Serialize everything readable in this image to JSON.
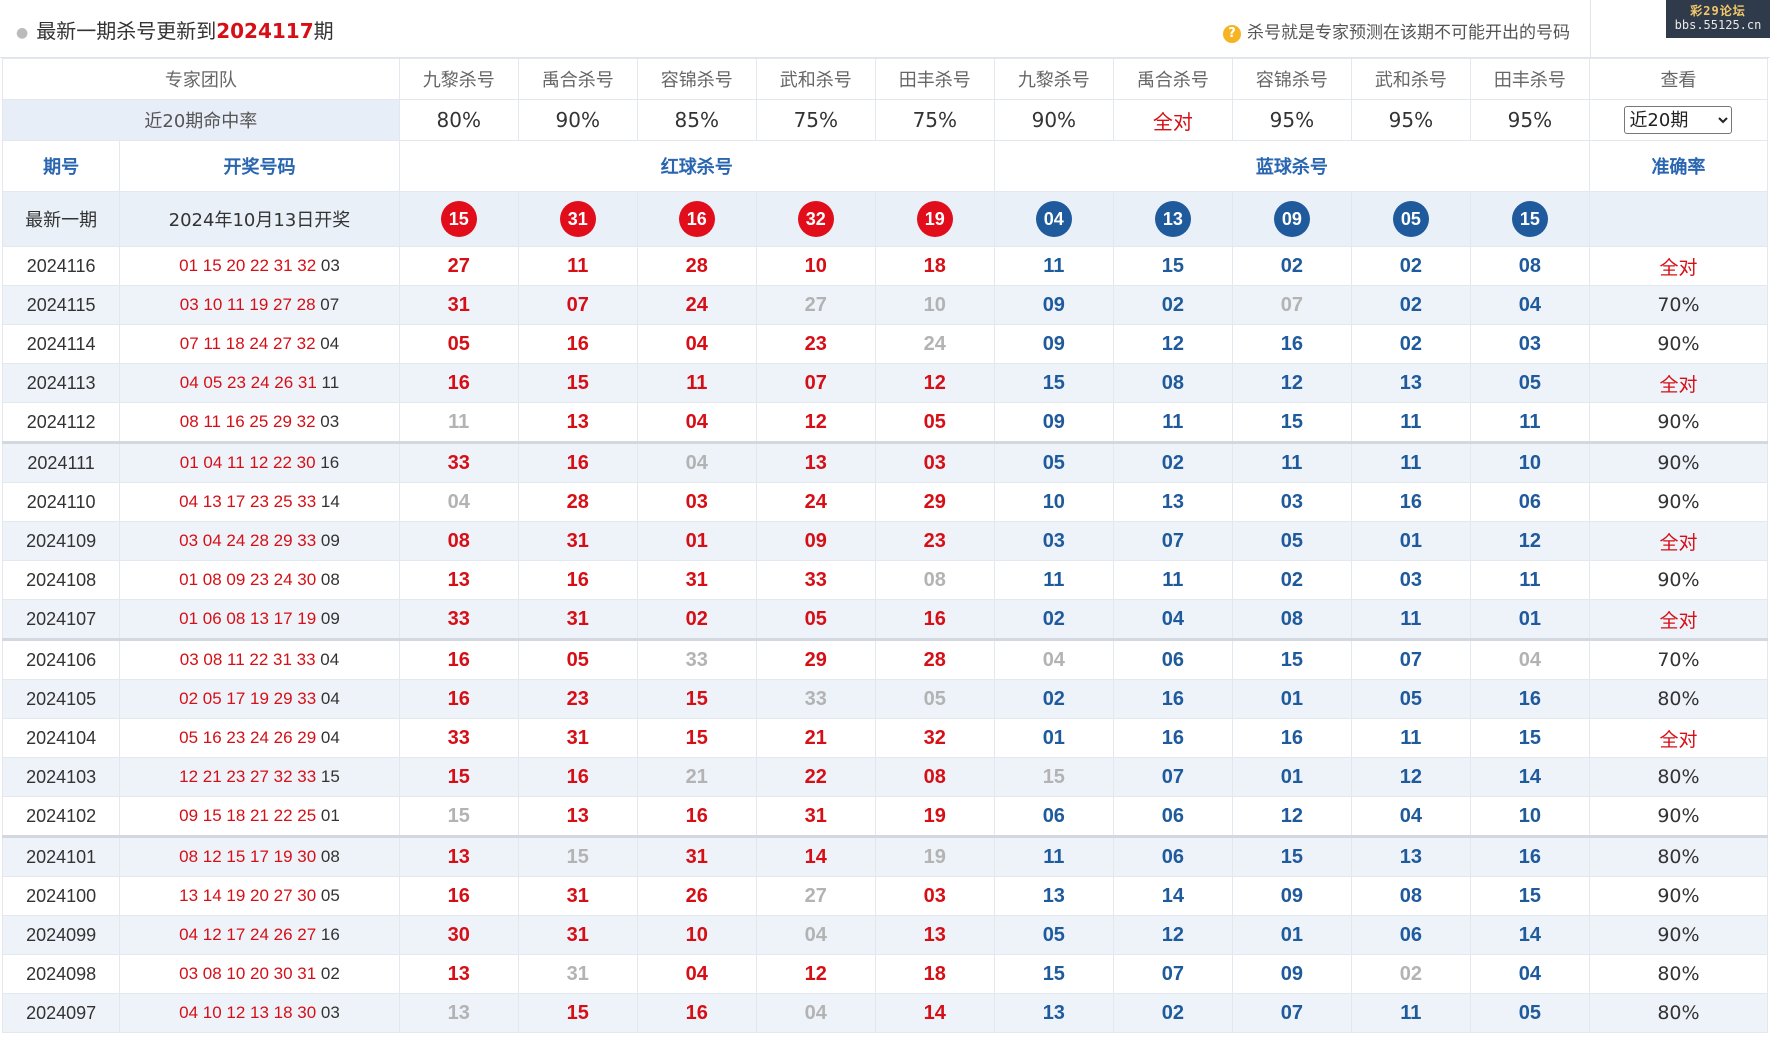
{
  "header": {
    "title_prefix": "最新一期杀号更新到",
    "latest_issue": "2024117",
    "title_suffix": "期",
    "hint": "杀号就是专家预测在该期不可能开出的号码",
    "hint_icon": "question-icon",
    "watermark_line1": "彩29论坛",
    "watermark_line2": "bbs.55125.cn"
  },
  "experts_header": {
    "team_label": "专家团队",
    "red": [
      "九黎杀号",
      "禹合杀号",
      "容锦杀号",
      "武和杀号",
      "田丰杀号"
    ],
    "blue": [
      "九黎杀号",
      "禹合杀号",
      "容锦杀号",
      "武和杀号",
      "田丰杀号"
    ],
    "view_label": "查看"
  },
  "hit_rate": {
    "label": "近20期命中率",
    "values": [
      "80%",
      "90%",
      "85%",
      "75%",
      "75%",
      "90%",
      "全对",
      "95%",
      "95%",
      "95%"
    ],
    "period_select": "近20期"
  },
  "sections": {
    "issue": "期号",
    "draw": "开奖号码",
    "red_kill": "红球杀号",
    "blue_kill": "蓝球杀号",
    "accuracy": "准确率"
  },
  "latest": {
    "label": "最新一期",
    "draw_date": "2024年10月13日开奖",
    "red": [
      "15",
      "31",
      "16",
      "32",
      "19"
    ],
    "blue": [
      "04",
      "13",
      "09",
      "05",
      "15"
    ]
  },
  "rows": [
    {
      "issue": "2024116",
      "red": "01 15 20 22 31 32",
      "blue": "03",
      "kills": [
        "27",
        "11",
        "28",
        "10",
        "18",
        "11",
        "15",
        "02",
        "02",
        "08"
      ],
      "miss": [],
      "acc": "全对"
    },
    {
      "issue": "2024115",
      "red": "03 10 11 19 27 28",
      "blue": "07",
      "kills": [
        "31",
        "07",
        "24",
        "27",
        "10",
        "09",
        "02",
        "07",
        "02",
        "04"
      ],
      "miss": [
        3,
        4,
        7
      ],
      "acc": "70%"
    },
    {
      "issue": "2024114",
      "red": "07 11 18 24 27 32",
      "blue": "04",
      "kills": [
        "05",
        "16",
        "04",
        "23",
        "24",
        "09",
        "12",
        "16",
        "02",
        "03"
      ],
      "miss": [
        4
      ],
      "acc": "90%"
    },
    {
      "issue": "2024113",
      "red": "04 05 23 24 26 31",
      "blue": "11",
      "kills": [
        "16",
        "15",
        "11",
        "07",
        "12",
        "15",
        "08",
        "12",
        "13",
        "05"
      ],
      "miss": [],
      "acc": "全对"
    },
    {
      "issue": "2024112",
      "red": "08 11 16 25 29 32",
      "blue": "03",
      "kills": [
        "11",
        "13",
        "04",
        "12",
        "05",
        "09",
        "11",
        "15",
        "11",
        "11"
      ],
      "miss": [
        0
      ],
      "acc": "90%"
    },
    {
      "issue": "2024111",
      "red": "01 04 11 12 22 30",
      "blue": "16",
      "kills": [
        "33",
        "16",
        "04",
        "13",
        "03",
        "05",
        "02",
        "11",
        "11",
        "10"
      ],
      "miss": [
        2
      ],
      "acc": "90%"
    },
    {
      "issue": "2024110",
      "red": "04 13 17 23 25 33",
      "blue": "14",
      "kills": [
        "04",
        "28",
        "03",
        "24",
        "29",
        "10",
        "13",
        "03",
        "16",
        "06"
      ],
      "miss": [
        0
      ],
      "acc": "90%"
    },
    {
      "issue": "2024109",
      "red": "03 04 24 28 29 33",
      "blue": "09",
      "kills": [
        "08",
        "31",
        "01",
        "09",
        "23",
        "03",
        "07",
        "05",
        "01",
        "12"
      ],
      "miss": [],
      "acc": "全对"
    },
    {
      "issue": "2024108",
      "red": "01 08 09 23 24 30",
      "blue": "08",
      "kills": [
        "13",
        "16",
        "31",
        "33",
        "08",
        "11",
        "11",
        "02",
        "03",
        "11"
      ],
      "miss": [
        4
      ],
      "acc": "90%"
    },
    {
      "issue": "2024107",
      "red": "01 06 08 13 17 19",
      "blue": "09",
      "kills": [
        "33",
        "31",
        "02",
        "05",
        "16",
        "02",
        "04",
        "08",
        "11",
        "01"
      ],
      "miss": [],
      "acc": "全对"
    },
    {
      "issue": "2024106",
      "red": "03 08 11 22 31 33",
      "blue": "04",
      "kills": [
        "16",
        "05",
        "33",
        "29",
        "28",
        "04",
        "06",
        "15",
        "07",
        "04"
      ],
      "miss": [
        2,
        5,
        9
      ],
      "acc": "70%"
    },
    {
      "issue": "2024105",
      "red": "02 05 17 19 29 33",
      "blue": "04",
      "kills": [
        "16",
        "23",
        "15",
        "33",
        "05",
        "02",
        "16",
        "01",
        "05",
        "16"
      ],
      "miss": [
        3,
        4
      ],
      "acc": "80%"
    },
    {
      "issue": "2024104",
      "red": "05 16 23 24 26 29",
      "blue": "04",
      "kills": [
        "33",
        "31",
        "15",
        "21",
        "32",
        "01",
        "16",
        "16",
        "11",
        "15"
      ],
      "miss": [],
      "acc": "全对"
    },
    {
      "issue": "2024103",
      "red": "12 21 23 27 32 33",
      "blue": "15",
      "kills": [
        "15",
        "16",
        "21",
        "22",
        "08",
        "15",
        "07",
        "01",
        "12",
        "14"
      ],
      "miss": [
        2,
        5
      ],
      "acc": "80%"
    },
    {
      "issue": "2024102",
      "red": "09 15 18 21 22 25",
      "blue": "01",
      "kills": [
        "15",
        "13",
        "16",
        "31",
        "19",
        "06",
        "06",
        "12",
        "04",
        "10"
      ],
      "miss": [
        0
      ],
      "acc": "90%"
    },
    {
      "issue": "2024101",
      "red": "08 12 15 17 19 30",
      "blue": "08",
      "kills": [
        "13",
        "15",
        "31",
        "14",
        "19",
        "11",
        "06",
        "15",
        "13",
        "16"
      ],
      "miss": [
        1,
        4
      ],
      "acc": "80%"
    },
    {
      "issue": "2024100",
      "red": "13 14 19 20 27 30",
      "blue": "05",
      "kills": [
        "16",
        "31",
        "26",
        "27",
        "03",
        "13",
        "14",
        "09",
        "08",
        "15"
      ],
      "miss": [
        3
      ],
      "acc": "90%"
    },
    {
      "issue": "2024099",
      "red": "04 12 17 24 26 27",
      "blue": "16",
      "kills": [
        "30",
        "31",
        "10",
        "04",
        "13",
        "05",
        "12",
        "01",
        "06",
        "14"
      ],
      "miss": [
        3
      ],
      "acc": "90%"
    },
    {
      "issue": "2024098",
      "red": "03 08 10 20 30 31",
      "blue": "02",
      "kills": [
        "13",
        "31",
        "04",
        "12",
        "18",
        "15",
        "07",
        "09",
        "02",
        "04"
      ],
      "miss": [
        1,
        8
      ],
      "acc": "80%"
    },
    {
      "issue": "2024097",
      "red": "04 10 12 13 18 30",
      "blue": "03",
      "kills": [
        "13",
        "15",
        "16",
        "04",
        "14",
        "13",
        "02",
        "07",
        "11",
        "05"
      ],
      "miss": [
        0,
        3
      ],
      "acc": "80%"
    }
  ],
  "colors": {
    "red": "#d60f16",
    "blue": "#1e5a9c",
    "miss": "#b3b3b3",
    "section_bg": "#eaf0f8"
  }
}
